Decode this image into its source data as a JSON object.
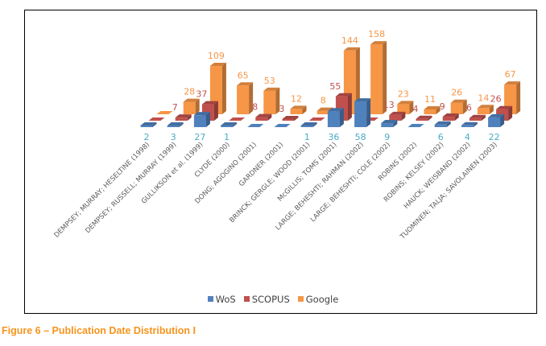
{
  "chart_data": {
    "type": "bar",
    "subtype": "3d-column",
    "title": "",
    "xlabel": "",
    "ylabel": "",
    "grid": false,
    "legend_position": "bottom",
    "categories": [
      "DEMPSEY; MURRAY; HESELTINE (1998)",
      "DEMPSEY; RUSSELL; MURRAY (1999)",
      "GULLIKSON et al. (1999)",
      "CLYDE (2000)",
      "DONG; AGOGINO (2001)",
      "GARDNER (2001)",
      "BRINCK; GERGLE; WOOD (2001)",
      "McGILLIS; TOMS (2001)",
      "LARGE; BEHESHTI; RAHMAN (2002)",
      "LARGE; BEHESHTI; COLE (2002)",
      "ROBINS (2002)",
      "ROBINS; KELSEY (2002)",
      "HAUCK; WEISBAND (2002)",
      "TUOMINEN; TALJA; SAVOLAINEN (2003)"
    ],
    "series": [
      {
        "name": "WoS",
        "color": "#4f81bd",
        "label_color": "#4bacc6",
        "values": [
          2,
          3,
          27,
          1,
          null,
          null,
          1,
          36,
          58,
          9,
          null,
          6,
          4,
          22
        ]
      },
      {
        "name": "SCOPUS",
        "color": "#c0504d",
        "label_color": "#c0504d",
        "values": [
          null,
          7,
          37,
          null,
          8,
          3,
          null,
          55,
          null,
          13,
          4,
          9,
          6,
          26
        ]
      },
      {
        "name": "Google",
        "color": "#f79646",
        "label_color": "#f79646",
        "values": [
          null,
          28,
          109,
          65,
          53,
          12,
          8,
          144,
          158,
          23,
          11,
          26,
          14,
          67
        ]
      }
    ]
  },
  "caption": "Figure 6 – Publication Date Distribution I"
}
